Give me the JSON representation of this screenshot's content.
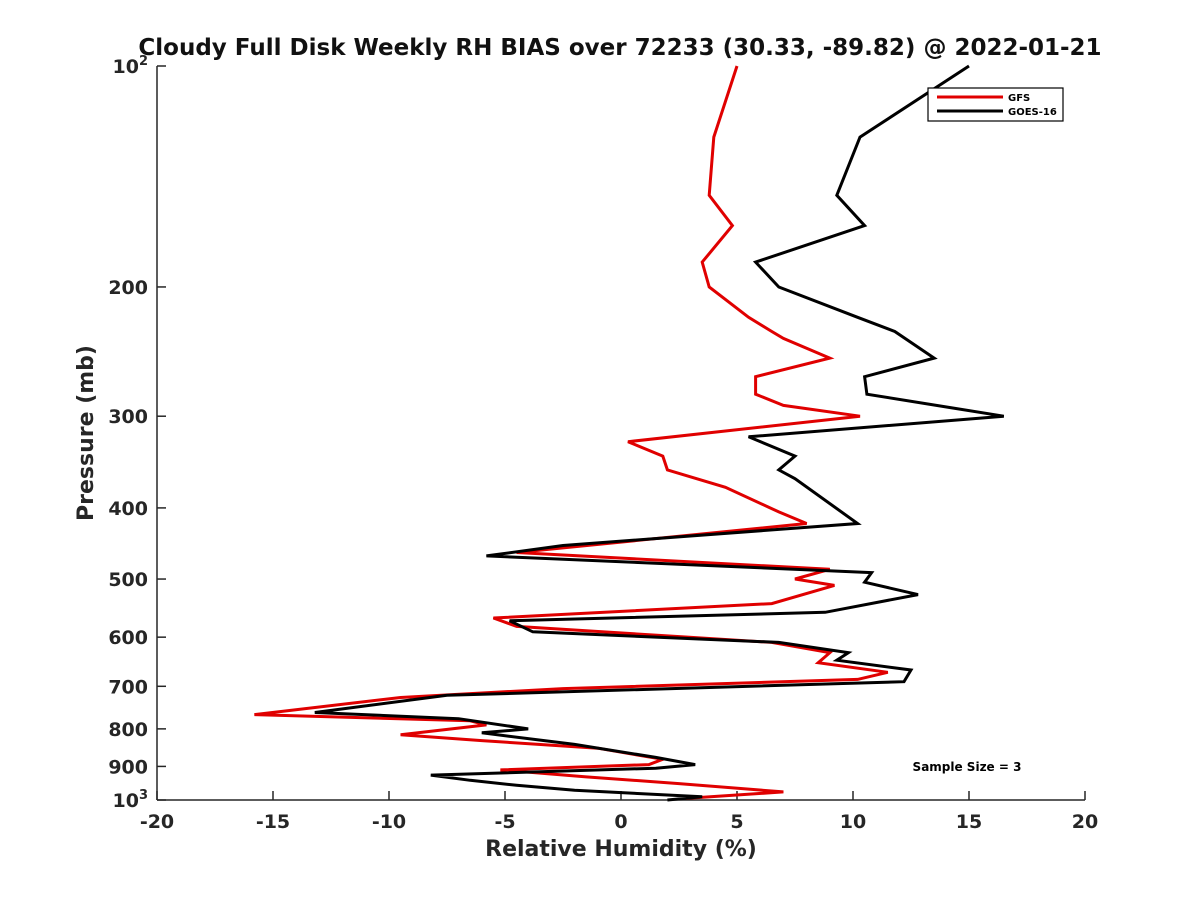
{
  "chart_data": {
    "type": "line",
    "title": "Cloudy Full Disk Weekly RH BIAS over 72233 (30.33, -89.82) @ 2022-01-21",
    "xlabel": "Relative Humidity (%)",
    "ylabel": "Pressure (mb)",
    "xlim": [
      -20,
      20
    ],
    "ylim": [
      100,
      1000
    ],
    "yscale": "log",
    "y_reversed": true,
    "x_ticks": [
      "-20",
      "-15",
      "-10",
      "-5",
      "0",
      "5",
      "10",
      "15",
      "20"
    ],
    "y_ticks": [
      {
        "value": 100,
        "base": "10",
        "exp": "2"
      },
      {
        "value": 200,
        "label": "200"
      },
      {
        "value": 300,
        "label": "300"
      },
      {
        "value": 400,
        "label": "400"
      },
      {
        "value": 500,
        "label": "500"
      },
      {
        "value": 600,
        "label": "600"
      },
      {
        "value": 700,
        "label": "700"
      },
      {
        "value": 800,
        "label": "800"
      },
      {
        "value": 900,
        "label": "900"
      },
      {
        "value": 1000,
        "base": "10",
        "exp": "3"
      }
    ],
    "legend_position": "top-right",
    "annotation": "Sample Size = 3",
    "series": [
      {
        "name": "GFS",
        "color": "#e00000",
        "points": [
          [
            5.0,
            100
          ],
          [
            4.0,
            125
          ],
          [
            3.8,
            150
          ],
          [
            4.8,
            165
          ],
          [
            3.5,
            185
          ],
          [
            3.8,
            200
          ],
          [
            5.5,
            220
          ],
          [
            6.5,
            230
          ],
          [
            7.0,
            235
          ],
          [
            9.0,
            250
          ],
          [
            5.8,
            265
          ],
          [
            5.8,
            280
          ],
          [
            7.0,
            290
          ],
          [
            10.3,
            300
          ],
          [
            0.3,
            325
          ],
          [
            1.8,
            340
          ],
          [
            2.0,
            355
          ],
          [
            4.5,
            375
          ],
          [
            6.8,
            405
          ],
          [
            8.0,
            420
          ],
          [
            -4.5,
            460
          ],
          [
            9.0,
            485
          ],
          [
            7.5,
            500
          ],
          [
            9.2,
            510
          ],
          [
            6.5,
            540
          ],
          [
            -5.5,
            565
          ],
          [
            -4.5,
            580
          ],
          [
            6.5,
            610
          ],
          [
            9.0,
            630
          ],
          [
            8.5,
            650
          ],
          [
            11.5,
            670
          ],
          [
            10.2,
            685
          ],
          [
            -2.5,
            705
          ],
          [
            -9.5,
            725
          ],
          [
            -15.8,
            765
          ],
          [
            -6.5,
            780
          ],
          [
            -5.8,
            790
          ],
          [
            -9.5,
            815
          ],
          [
            -6.0,
            830
          ],
          [
            -1.0,
            850
          ],
          [
            1.8,
            880
          ],
          [
            1.2,
            895
          ],
          [
            -5.2,
            910
          ],
          [
            -1.5,
            930
          ],
          [
            2.5,
            950
          ],
          [
            7.0,
            975
          ],
          [
            2.8,
            995
          ]
        ]
      },
      {
        "name": "GOES-16",
        "color": "#000000",
        "points": [
          [
            15.0,
            100
          ],
          [
            10.3,
            125
          ],
          [
            9.3,
            150
          ],
          [
            10.5,
            165
          ],
          [
            5.8,
            185
          ],
          [
            6.8,
            200
          ],
          [
            10.2,
            220
          ],
          [
            11.8,
            230
          ],
          [
            13.5,
            250
          ],
          [
            10.5,
            265
          ],
          [
            10.6,
            280
          ],
          [
            14.2,
            292
          ],
          [
            16.5,
            300
          ],
          [
            5.5,
            320
          ],
          [
            7.5,
            340
          ],
          [
            6.8,
            355
          ],
          [
            7.5,
            365
          ],
          [
            10.2,
            420
          ],
          [
            -2.5,
            450
          ],
          [
            -5.8,
            465
          ],
          [
            10.8,
            490
          ],
          [
            10.5,
            505
          ],
          [
            12.8,
            525
          ],
          [
            8.8,
            555
          ],
          [
            -4.8,
            570
          ],
          [
            -3.8,
            590
          ],
          [
            6.8,
            610
          ],
          [
            9.8,
            630
          ],
          [
            9.3,
            645
          ],
          [
            12.5,
            665
          ],
          [
            12.2,
            690
          ],
          [
            -7.5,
            720
          ],
          [
            -13.2,
            760
          ],
          [
            -7.0,
            775
          ],
          [
            -4.0,
            800
          ],
          [
            -6.0,
            810
          ],
          [
            -2.0,
            840
          ],
          [
            1.5,
            875
          ],
          [
            3.2,
            895
          ],
          [
            1.5,
            905
          ],
          [
            -8.2,
            925
          ],
          [
            -6.5,
            940
          ],
          [
            -4.5,
            955
          ],
          [
            -2.0,
            970
          ],
          [
            3.5,
            990
          ],
          [
            2.0,
            1000
          ]
        ]
      }
    ]
  }
}
